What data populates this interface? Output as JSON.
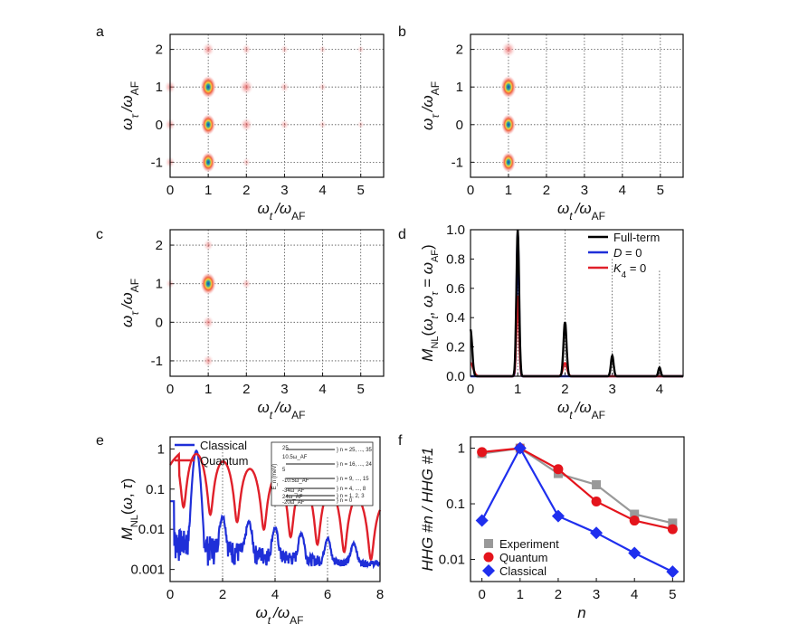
{
  "chart_data": [
    {
      "panel": "a",
      "type": "heatmap",
      "xlabel": "ω_t / ω_AF",
      "ylabel": "ω_τ / ω_AF",
      "xlim": [
        0,
        5.6
      ],
      "ylim": [
        -1.4,
        2.4
      ],
      "xticks": [
        "0",
        "1",
        "2",
        "3",
        "4",
        "5"
      ],
      "yticks": [
        "-1",
        "0",
        "1",
        "2"
      ],
      "spots": [
        {
          "x": 1,
          "y": 1,
          "v": 1.0
        },
        {
          "x": 1,
          "y": 0,
          "v": 0.75
        },
        {
          "x": 1,
          "y": -1,
          "v": 0.7
        },
        {
          "x": 1,
          "y": 2,
          "v": 0.4
        },
        {
          "x": 2,
          "y": 1,
          "v": 0.5
        },
        {
          "x": 2,
          "y": 0,
          "v": 0.4
        },
        {
          "x": 2,
          "y": 2,
          "v": 0.2
        },
        {
          "x": 2,
          "y": -1,
          "v": 0.12
        },
        {
          "x": 0,
          "y": 1,
          "v": 0.35
        },
        {
          "x": 0,
          "y": 0,
          "v": 0.3
        },
        {
          "x": 0,
          "y": -1,
          "v": 0.25
        },
        {
          "x": 3,
          "y": 1,
          "v": 0.2
        },
        {
          "x": 3,
          "y": 0,
          "v": 0.18
        },
        {
          "x": 3,
          "y": 2,
          "v": 0.12
        },
        {
          "x": 4,
          "y": 1,
          "v": 0.1
        },
        {
          "x": 4,
          "y": 0,
          "v": 0.08
        },
        {
          "x": 4,
          "y": 2,
          "v": 0.07
        },
        {
          "x": 5,
          "y": 2,
          "v": 0.05
        },
        {
          "x": 5,
          "y": 0,
          "v": 0.04
        }
      ]
    },
    {
      "panel": "b",
      "type": "heatmap",
      "xlabel": "ω_t / ω_AF",
      "ylabel": "ω_τ / ω_AF",
      "xlim": [
        0,
        5.6
      ],
      "ylim": [
        -1.4,
        2.4
      ],
      "xticks": [
        "0",
        "1",
        "2",
        "3",
        "4",
        "5"
      ],
      "yticks": [
        "-1",
        "0",
        "1",
        "2"
      ],
      "spots": [
        {
          "x": 1,
          "y": 1,
          "v": 1.0
        },
        {
          "x": 1,
          "y": 0,
          "v": 0.75
        },
        {
          "x": 1,
          "y": -1,
          "v": 0.7
        },
        {
          "x": 1,
          "y": 2,
          "v": 0.55
        }
      ]
    },
    {
      "panel": "c",
      "type": "heatmap",
      "xlabel": "ω_t / ω_AF",
      "ylabel": "ω_τ / ω_AF",
      "xlim": [
        0,
        5.6
      ],
      "ylim": [
        -1.4,
        2.4
      ],
      "xticks": [
        "0",
        "1",
        "2",
        "3",
        "4",
        "5"
      ],
      "yticks": [
        "-1",
        "0",
        "1",
        "2"
      ],
      "spots": [
        {
          "x": 1,
          "y": 1,
          "v": 0.95
        },
        {
          "x": 1,
          "y": 0,
          "v": 0.35
        },
        {
          "x": 1,
          "y": -1,
          "v": 0.3
        },
        {
          "x": 1,
          "y": 2,
          "v": 0.25
        },
        {
          "x": 2,
          "y": 1,
          "v": 0.2
        },
        {
          "x": 0,
          "y": 1,
          "v": 0.15
        }
      ]
    },
    {
      "panel": "d",
      "type": "line",
      "xlabel": "ω_t / ω_AF",
      "ylabel": "M_NL(ω_t, ω_τ = ω_AF)",
      "xlim": [
        0,
        4.5
      ],
      "ylim": [
        0,
        1.0
      ],
      "xticks": [
        "0",
        "1",
        "2",
        "3",
        "4"
      ],
      "yticks": [
        "0.0",
        "0.2",
        "0.4",
        "0.6",
        "0.8",
        "1.0"
      ],
      "legend": [
        "Full-term",
        "D = 0",
        "K4 = 0"
      ],
      "series": [
        {
          "name": "Full-term",
          "color": "#000000",
          "peaks": [
            [
              0,
              0.32,
              0.05
            ],
            [
              1,
              1.0,
              0.04
            ],
            [
              2,
              0.37,
              0.045
            ],
            [
              3,
              0.14,
              0.04
            ],
            [
              4,
              0.06,
              0.035
            ]
          ]
        },
        {
          "name": "D = 0",
          "color": "#1f2fd8",
          "peaks": [
            [
              1,
              0.98,
              0.035
            ]
          ]
        },
        {
          "name": "K4 = 0",
          "color": "#e0202a",
          "peaks": [
            [
              0,
              0.09,
              0.08
            ],
            [
              1,
              0.55,
              0.04
            ],
            [
              2,
              0.09,
              0.06
            ]
          ]
        }
      ]
    },
    {
      "panel": "e",
      "type": "line",
      "yscale": "log",
      "xlabel": "ω_t / ω_AF",
      "ylabel": "M_NL(ω, τ)",
      "xlim": [
        0,
        8
      ],
      "ylim": [
        0.0005,
        2
      ],
      "xticks": [
        "0",
        "2",
        "4",
        "6",
        "8"
      ],
      "yticks": [
        "0.001",
        "0.01",
        "0.1",
        "1"
      ],
      "legend": [
        "Classical",
        "Quantum"
      ],
      "inset": {
        "ylabel": "E_n (meV)",
        "yticks": [
          "25",
          "10.5ω_AF",
          "5",
          "-10.5ω_AF",
          "-34ω_AF",
          "24ω_AF",
          "-20ω_AF"
        ],
        "levels": [
          "n = 25, ..., 35",
          "n = 16, ..., 24",
          "n = 9, ..., 15",
          "n = 4, ..., 8",
          "n = 1, 2, 3",
          "n = 0"
        ]
      }
    },
    {
      "panel": "f",
      "type": "scatter",
      "yscale": "log",
      "xlabel": "n",
      "ylabel": "HHG #n / HHG #1",
      "xlim": [
        -0.3,
        5.3
      ],
      "ylim": [
        0.004,
        1.6
      ],
      "xticks": [
        "0",
        "1",
        "2",
        "3",
        "4",
        "5"
      ],
      "yticks": [
        "0.01",
        "0.1",
        "1"
      ],
      "x": [
        0,
        1,
        2,
        3,
        4,
        5
      ],
      "series": [
        {
          "name": "Experiment",
          "color": "#999999",
          "marker": "square",
          "values": [
            0.8,
            1.0,
            0.35,
            0.22,
            0.065,
            0.045
          ]
        },
        {
          "name": "Quantum",
          "color": "#e4141c",
          "marker": "circle",
          "values": [
            0.85,
            1.0,
            0.42,
            0.11,
            0.05,
            0.035
          ]
        },
        {
          "name": "Classical",
          "color": "#1f2fee",
          "marker": "diamond",
          "values": [
            0.05,
            1.0,
            0.06,
            0.03,
            0.013,
            0.006
          ]
        }
      ]
    }
  ]
}
